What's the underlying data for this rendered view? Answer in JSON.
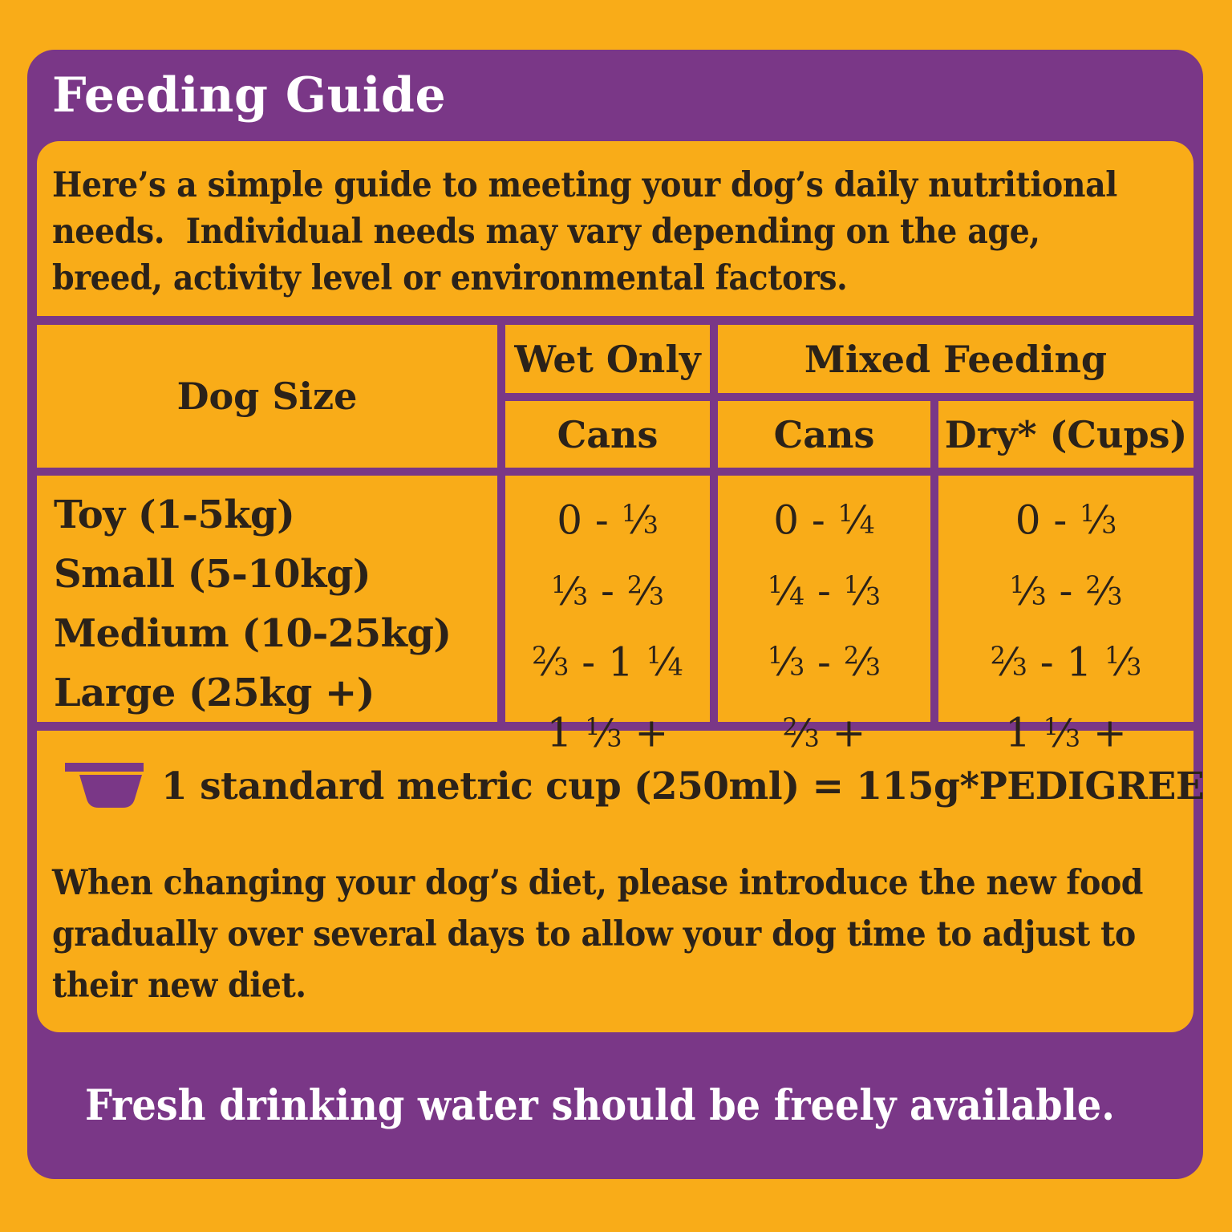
{
  "colors": {
    "background_yellow": "#F9AC18",
    "brand_purple": "#7A3787",
    "text_dark": "#2B2219",
    "text_white": "#FFFFFF"
  },
  "title": "Feeding Guide",
  "intro": {
    "lines": [
      "Here’s a simple guide to meeting your dog’s daily nutritional",
      "needs.  Individual needs may vary depending on the age,",
      "breed, activity level or environmental factors."
    ]
  },
  "table": {
    "headers": {
      "dog_size": "Dog Size",
      "wet_only": "Wet Only",
      "mixed_feeding": "Mixed Feeding",
      "wet_cans": "Cans",
      "mixed_cans": "Cans",
      "mixed_dry": "Dry* (Cups)"
    },
    "rows": [
      {
        "size": "Toy (1-5kg)",
        "wet_cans": "0 - 1/3",
        "mixed_cans": "0 - 1/4",
        "mixed_dry": "0 - 1/3"
      },
      {
        "size": "Small (5-10kg)",
        "wet_cans": "1/3 - 2/3",
        "mixed_cans": "1/4 - 1/3",
        "mixed_dry": "1/3 - 2/3"
      },
      {
        "size": "Medium (10-25kg)",
        "wet_cans": "2/3 - 1 1/4",
        "mixed_cans": "1/3 - 2/3",
        "mixed_dry": "2/3 - 1 1/3"
      },
      {
        "size": "Large (25kg +)",
        "wet_cans": "1 1/3 +",
        "mixed_cans": "2/3 +",
        "mixed_dry": "1 1/3 +"
      }
    ]
  },
  "cup_note": {
    "icon": "measuring-cup-icon",
    "text": "1 standard metric cup (250ml) = 115g*PEDIGREE®"
  },
  "change_note": {
    "lines": [
      "When changing your dog’s diet, please introduce the new food",
      "gradually over several days to allow your dog time to adjust to",
      "their new diet."
    ]
  },
  "water_note": {
    "icon": "water-drop-icon",
    "text": "Fresh drinking water should be freely available."
  }
}
